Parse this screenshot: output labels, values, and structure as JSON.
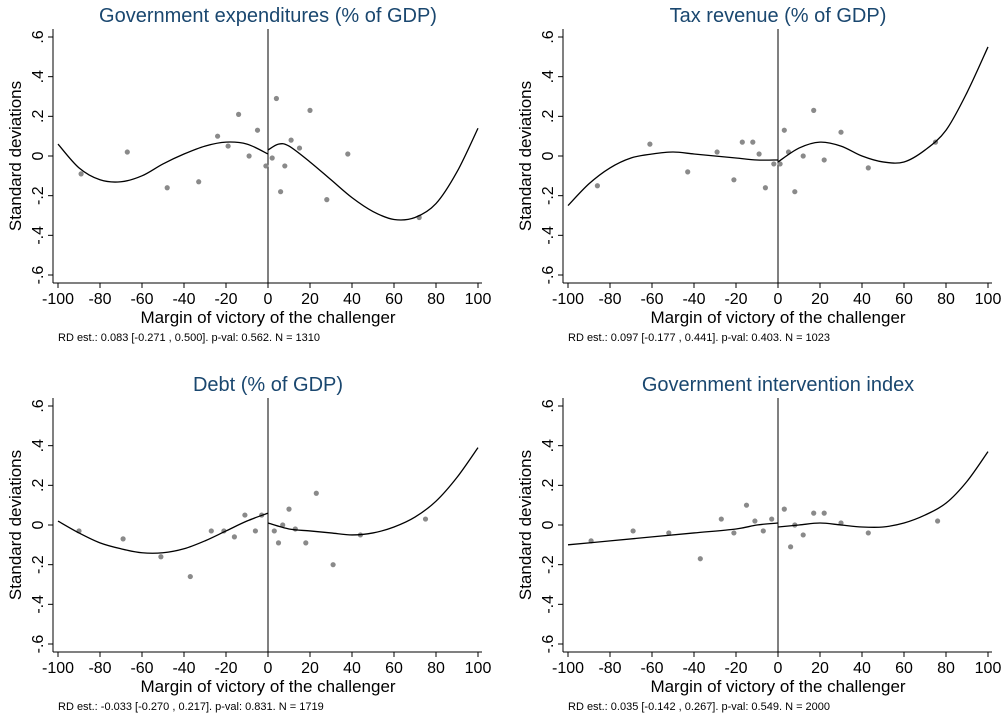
{
  "chart_data": [
    {
      "type": "scatter",
      "title": "Government expenditures (% of GDP)",
      "xlabel": "Margin of victory of the challenger",
      "ylabel": "Standard deviations",
      "note": "RD est.: 0.083 [-0.271 , 0.500]. p-val: 0.562. N = 1310",
      "xlim": [
        -100,
        100
      ],
      "ylim": [
        -0.6,
        0.6
      ],
      "xticks": [
        "-100",
        "-80",
        "-60",
        "-40",
        "-20",
        "0",
        "20",
        "40",
        "60",
        "80",
        "100"
      ],
      "yticks": [
        "-.6",
        "-.4",
        "-.2",
        "0",
        ".2",
        ".4",
        ".6"
      ],
      "points": [
        {
          "x": -89,
          "y": -0.09
        },
        {
          "x": -67,
          "y": 0.02
        },
        {
          "x": -48,
          "y": -0.16
        },
        {
          "x": -33,
          "y": -0.13
        },
        {
          "x": -24,
          "y": 0.1
        },
        {
          "x": -19,
          "y": 0.05
        },
        {
          "x": -14,
          "y": 0.21
        },
        {
          "x": -9,
          "y": 0.0
        },
        {
          "x": -5,
          "y": 0.13
        },
        {
          "x": -1,
          "y": -0.05
        },
        {
          "x": 2,
          "y": -0.01
        },
        {
          "x": 4,
          "y": 0.29
        },
        {
          "x": 6,
          "y": -0.18
        },
        {
          "x": 8,
          "y": -0.05
        },
        {
          "x": 11,
          "y": 0.08
        },
        {
          "x": 15,
          "y": 0.04
        },
        {
          "x": 20,
          "y": 0.23
        },
        {
          "x": 28,
          "y": -0.22
        },
        {
          "x": 38,
          "y": 0.01
        },
        {
          "x": 72,
          "y": -0.31
        }
      ],
      "fit_left": [
        {
          "x": -100,
          "y": 0.06
        },
        {
          "x": -90,
          "y": -0.06
        },
        {
          "x": -80,
          "y": -0.12
        },
        {
          "x": -70,
          "y": -0.13
        },
        {
          "x": -60,
          "y": -0.1
        },
        {
          "x": -50,
          "y": -0.04
        },
        {
          "x": -40,
          "y": 0.01
        },
        {
          "x": -30,
          "y": 0.05
        },
        {
          "x": -20,
          "y": 0.07
        },
        {
          "x": -10,
          "y": 0.06
        },
        {
          "x": 0,
          "y": 0.01
        }
      ],
      "fit_right": [
        {
          "x": 0,
          "y": 0.03
        },
        {
          "x": 5,
          "y": 0.06
        },
        {
          "x": 10,
          "y": 0.05
        },
        {
          "x": 20,
          "y": -0.03
        },
        {
          "x": 30,
          "y": -0.12
        },
        {
          "x": 40,
          "y": -0.21
        },
        {
          "x": 50,
          "y": -0.28
        },
        {
          "x": 60,
          "y": -0.32
        },
        {
          "x": 70,
          "y": -0.31
        },
        {
          "x": 80,
          "y": -0.24
        },
        {
          "x": 90,
          "y": -0.08
        },
        {
          "x": 100,
          "y": 0.14
        }
      ]
    },
    {
      "type": "scatter",
      "title": "Tax revenue (% of GDP)",
      "xlabel": "Margin of victory of the challenger",
      "ylabel": "Standard deviations",
      "note": "RD est.: 0.097 [-0.177 , 0.441]. p-val: 0.403. N = 1023",
      "xlim": [
        -100,
        100
      ],
      "ylim": [
        -0.6,
        0.6
      ],
      "xticks": [
        "-100",
        "-80",
        "-60",
        "-40",
        "-20",
        "0",
        "20",
        "40",
        "60",
        "80",
        "100"
      ],
      "yticks": [
        "-.6",
        "-.4",
        "-.2",
        "0",
        ".2",
        ".4",
        ".6"
      ],
      "points": [
        {
          "x": -86,
          "y": -0.15
        },
        {
          "x": -61,
          "y": 0.06
        },
        {
          "x": -43,
          "y": -0.08
        },
        {
          "x": -29,
          "y": 0.02
        },
        {
          "x": -21,
          "y": -0.12
        },
        {
          "x": -17,
          "y": 0.07
        },
        {
          "x": -12,
          "y": 0.07
        },
        {
          "x": -9,
          "y": 0.01
        },
        {
          "x": -6,
          "y": -0.16
        },
        {
          "x": -2,
          "y": -0.04
        },
        {
          "x": 1,
          "y": -0.04
        },
        {
          "x": 3,
          "y": 0.13
        },
        {
          "x": 5,
          "y": 0.02
        },
        {
          "x": 8,
          "y": -0.18
        },
        {
          "x": 12,
          "y": 0.0
        },
        {
          "x": 17,
          "y": 0.23
        },
        {
          "x": 22,
          "y": -0.02
        },
        {
          "x": 30,
          "y": 0.12
        },
        {
          "x": 43,
          "y": -0.06
        },
        {
          "x": 75,
          "y": 0.07
        }
      ],
      "fit_left": [
        {
          "x": -100,
          "y": -0.25
        },
        {
          "x": -90,
          "y": -0.14
        },
        {
          "x": -80,
          "y": -0.06
        },
        {
          "x": -70,
          "y": -0.01
        },
        {
          "x": -60,
          "y": 0.01
        },
        {
          "x": -50,
          "y": 0.02
        },
        {
          "x": -40,
          "y": 0.01
        },
        {
          "x": -30,
          "y": 0.0
        },
        {
          "x": -20,
          "y": -0.01
        },
        {
          "x": -10,
          "y": -0.02
        },
        {
          "x": 0,
          "y": -0.02
        }
      ],
      "fit_right": [
        {
          "x": 0,
          "y": -0.03
        },
        {
          "x": 10,
          "y": 0.04
        },
        {
          "x": 20,
          "y": 0.07
        },
        {
          "x": 30,
          "y": 0.05
        },
        {
          "x": 40,
          "y": 0.0
        },
        {
          "x": 50,
          "y": -0.03
        },
        {
          "x": 60,
          "y": -0.03
        },
        {
          "x": 70,
          "y": 0.03
        },
        {
          "x": 80,
          "y": 0.13
        },
        {
          "x": 90,
          "y": 0.32
        },
        {
          "x": 100,
          "y": 0.55
        }
      ]
    },
    {
      "type": "scatter",
      "title": "Debt (% of GDP)",
      "xlabel": "Margin of victory of the challenger",
      "ylabel": "Standard deviations",
      "note": "RD est.: -0.033 [-0.270 , 0.217]. p-val: 0.831. N = 1719",
      "xlim": [
        -100,
        100
      ],
      "ylim": [
        -0.6,
        0.6
      ],
      "xticks": [
        "-100",
        "-80",
        "-60",
        "-40",
        "-20",
        "0",
        "20",
        "40",
        "60",
        "80",
        "100"
      ],
      "yticks": [
        "-.6",
        "-.4",
        "-.2",
        "0",
        ".2",
        ".4",
        ".6"
      ],
      "points": [
        {
          "x": -90,
          "y": -0.03
        },
        {
          "x": -69,
          "y": -0.07
        },
        {
          "x": -51,
          "y": -0.16
        },
        {
          "x": -37,
          "y": -0.26
        },
        {
          "x": -27,
          "y": -0.03
        },
        {
          "x": -21,
          "y": -0.03
        },
        {
          "x": -16,
          "y": -0.06
        },
        {
          "x": -11,
          "y": 0.05
        },
        {
          "x": -6,
          "y": -0.03
        },
        {
          "x": -3,
          "y": 0.05
        },
        {
          "x": 3,
          "y": -0.03
        },
        {
          "x": 5,
          "y": -0.09
        },
        {
          "x": 7,
          "y": 0.0
        },
        {
          "x": 10,
          "y": 0.08
        },
        {
          "x": 13,
          "y": -0.02
        },
        {
          "x": 18,
          "y": -0.09
        },
        {
          "x": 23,
          "y": 0.16
        },
        {
          "x": 31,
          "y": -0.2
        },
        {
          "x": 44,
          "y": -0.05
        },
        {
          "x": 75,
          "y": 0.03
        }
      ],
      "fit_left": [
        {
          "x": -100,
          "y": 0.02
        },
        {
          "x": -90,
          "y": -0.04
        },
        {
          "x": -80,
          "y": -0.09
        },
        {
          "x": -70,
          "y": -0.12
        },
        {
          "x": -60,
          "y": -0.14
        },
        {
          "x": -50,
          "y": -0.14
        },
        {
          "x": -40,
          "y": -0.12
        },
        {
          "x": -30,
          "y": -0.08
        },
        {
          "x": -20,
          "y": -0.03
        },
        {
          "x": -10,
          "y": 0.02
        },
        {
          "x": 0,
          "y": 0.06
        }
      ],
      "fit_right": [
        {
          "x": 0,
          "y": 0.01
        },
        {
          "x": 10,
          "y": -0.02
        },
        {
          "x": 20,
          "y": -0.03
        },
        {
          "x": 30,
          "y": -0.04
        },
        {
          "x": 40,
          "y": -0.05
        },
        {
          "x": 50,
          "y": -0.04
        },
        {
          "x": 60,
          "y": -0.01
        },
        {
          "x": 70,
          "y": 0.04
        },
        {
          "x": 80,
          "y": 0.12
        },
        {
          "x": 90,
          "y": 0.24
        },
        {
          "x": 100,
          "y": 0.39
        }
      ]
    },
    {
      "type": "scatter",
      "title": "Government intervention index",
      "xlabel": "Margin of victory of the challenger",
      "ylabel": "Standard deviations",
      "note": "RD est.: 0.035 [-0.142 , 0.267]. p-val: 0.549. N = 2000",
      "xlim": [
        -100,
        100
      ],
      "ylim": [
        -0.6,
        0.6
      ],
      "xticks": [
        "-100",
        "-80",
        "-60",
        "-40",
        "-20",
        "0",
        "20",
        "40",
        "60",
        "80",
        "100"
      ],
      "yticks": [
        "-.6",
        "-.4",
        "-.2",
        "0",
        ".2",
        ".4",
        ".6"
      ],
      "points": [
        {
          "x": -89,
          "y": -0.08
        },
        {
          "x": -69,
          "y": -0.03
        },
        {
          "x": -52,
          "y": -0.04
        },
        {
          "x": -37,
          "y": -0.17
        },
        {
          "x": -27,
          "y": 0.03
        },
        {
          "x": -21,
          "y": -0.04
        },
        {
          "x": -15,
          "y": 0.1
        },
        {
          "x": -11,
          "y": 0.02
        },
        {
          "x": -7,
          "y": -0.03
        },
        {
          "x": -3,
          "y": 0.03
        },
        {
          "x": 3,
          "y": 0.08
        },
        {
          "x": 6,
          "y": -0.11
        },
        {
          "x": 8,
          "y": 0.0
        },
        {
          "x": 12,
          "y": -0.05
        },
        {
          "x": 17,
          "y": 0.06
        },
        {
          "x": 22,
          "y": 0.06
        },
        {
          "x": 30,
          "y": 0.01
        },
        {
          "x": 43,
          "y": -0.04
        },
        {
          "x": 76,
          "y": 0.02
        }
      ],
      "fit_left": [
        {
          "x": -100,
          "y": -0.1
        },
        {
          "x": -80,
          "y": -0.08
        },
        {
          "x": -60,
          "y": -0.06
        },
        {
          "x": -40,
          "y": -0.04
        },
        {
          "x": -20,
          "y": -0.02
        },
        {
          "x": -10,
          "y": 0.0
        },
        {
          "x": 0,
          "y": 0.01
        }
      ],
      "fit_right": [
        {
          "x": 0,
          "y": -0.01
        },
        {
          "x": 10,
          "y": 0.0
        },
        {
          "x": 20,
          "y": 0.01
        },
        {
          "x": 30,
          "y": 0.0
        },
        {
          "x": 40,
          "y": -0.01
        },
        {
          "x": 50,
          "y": -0.01
        },
        {
          "x": 60,
          "y": 0.01
        },
        {
          "x": 70,
          "y": 0.05
        },
        {
          "x": 80,
          "y": 0.11
        },
        {
          "x": 90,
          "y": 0.22
        },
        {
          "x": 100,
          "y": 0.37
        }
      ]
    }
  ]
}
